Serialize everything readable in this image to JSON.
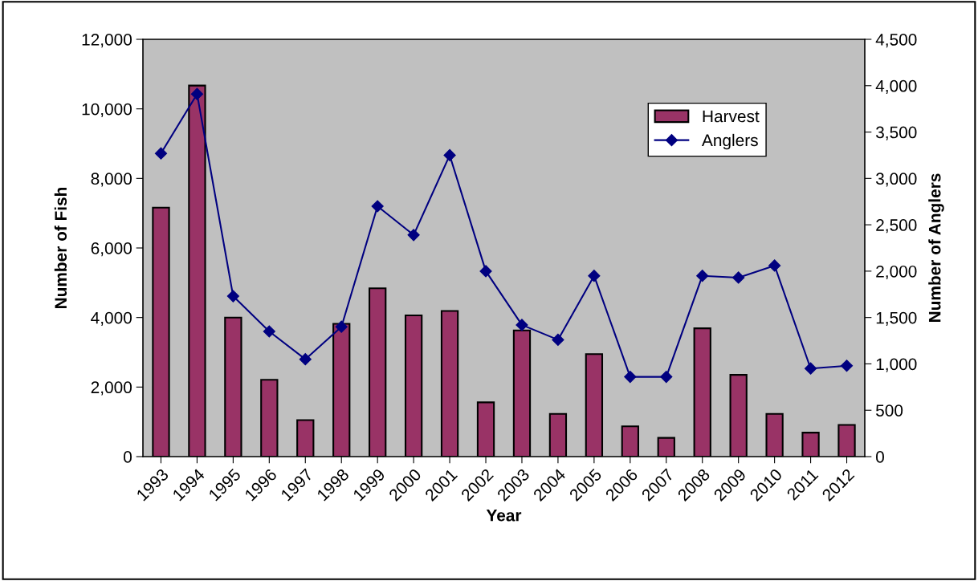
{
  "chart_data": {
    "type": "bar",
    "xlabel": "Year",
    "ylabel": "Number of Fish",
    "y2label": "Number of Anglers",
    "categories": [
      "1993",
      "1994",
      "1995",
      "1996",
      "1997",
      "1998",
      "1999",
      "2000",
      "2001",
      "2002",
      "2003",
      "2004",
      "2005",
      "2006",
      "2007",
      "2008",
      "2009",
      "2010",
      "2011",
      "2012"
    ],
    "series": [
      {
        "name": "Harvest",
        "color": "#993366",
        "values": [
          7160,
          10670,
          4000,
          2210,
          1050,
          3820,
          4840,
          4060,
          4190,
          1560,
          3630,
          1230,
          2950,
          870,
          540,
          3690,
          2350,
          1230,
          690,
          910
        ]
      },
      {
        "name": "Anglers",
        "type": "line",
        "axis": "y2",
        "color": "#000080",
        "marker": "diamond",
        "values": [
          3270,
          3910,
          1730,
          1350,
          1050,
          1400,
          2700,
          2390,
          3250,
          2000,
          1420,
          1260,
          1950,
          860,
          860,
          1950,
          1930,
          2060,
          950,
          980
        ]
      }
    ],
    "ylim": [
      0,
      12000
    ],
    "yticks": [
      {
        "value": 0,
        "label": "0"
      },
      {
        "value": 2000,
        "label": "2,000"
      },
      {
        "value": 4000,
        "label": "4,000"
      },
      {
        "value": 6000,
        "label": "6,000"
      },
      {
        "value": 8000,
        "label": "8,000"
      },
      {
        "value": 10000,
        "label": "10,000"
      },
      {
        "value": 12000,
        "label": "12,000"
      }
    ],
    "y2lim": [
      0,
      4500
    ],
    "y2ticks": [
      {
        "value": 0,
        "label": "0"
      },
      {
        "value": 500,
        "label": "500"
      },
      {
        "value": 1000,
        "label": "1,000"
      },
      {
        "value": 1500,
        "label": "1,500"
      },
      {
        "value": 2000,
        "label": "2,000"
      },
      {
        "value": 2500,
        "label": "2,500"
      },
      {
        "value": 3000,
        "label": "3,000"
      },
      {
        "value": 3500,
        "label": "3,500"
      },
      {
        "value": 4000,
        "label": "4,000"
      },
      {
        "value": 4500,
        "label": "4,500"
      }
    ],
    "legend": "top right",
    "grid": false
  }
}
